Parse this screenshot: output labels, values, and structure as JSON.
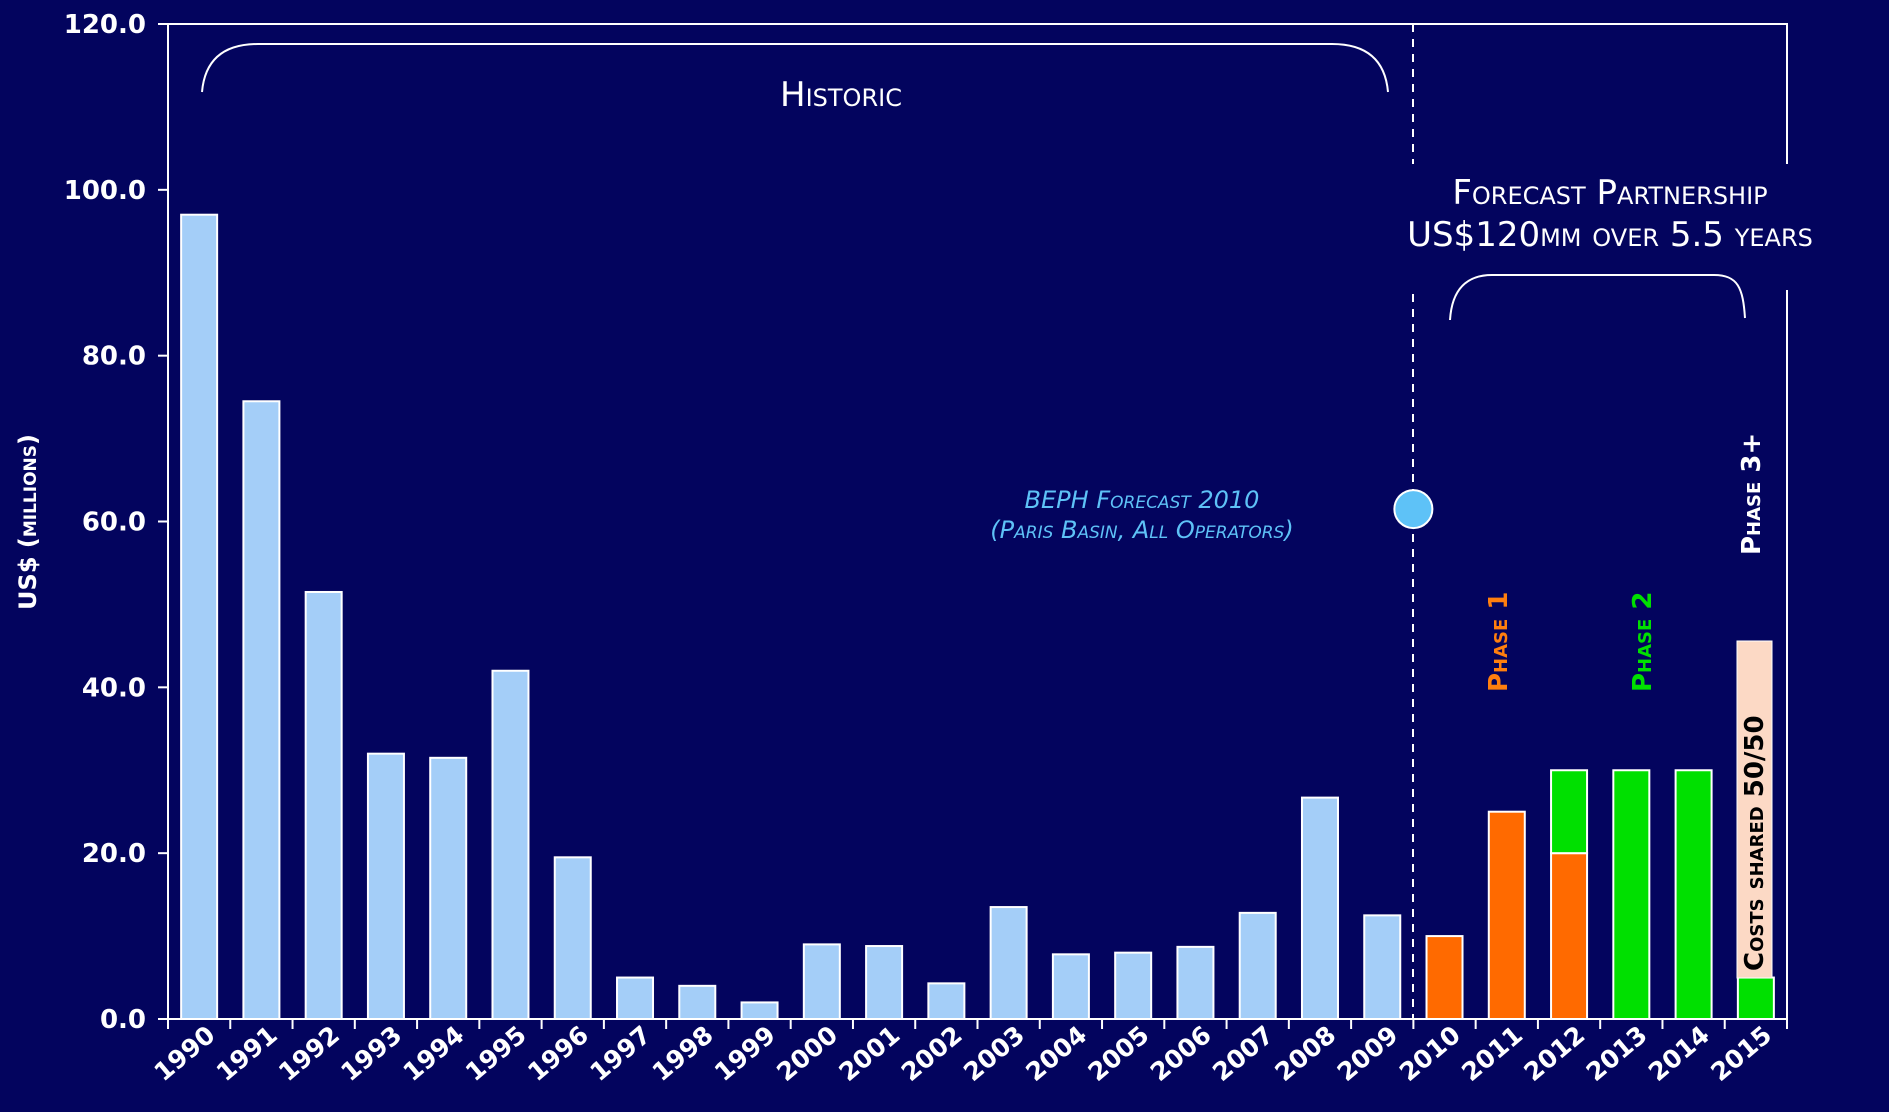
{
  "chart_data": {
    "type": "bar",
    "ylabel": "US$ (millions)",
    "ylim": [
      0,
      120
    ],
    "yticks": [
      "0.0",
      "20.0",
      "40.0",
      "60.0",
      "80.0",
      "100.0",
      "120.0"
    ],
    "categories": [
      "1990",
      "1991",
      "1992",
      "1993",
      "1994",
      "1995",
      "1996",
      "1997",
      "1998",
      "1999",
      "2000",
      "2001",
      "2002",
      "2003",
      "2004",
      "2005",
      "2006",
      "2007",
      "2008",
      "2009",
      "2010",
      "2011",
      "2012",
      "2013",
      "2014",
      "2015"
    ],
    "series": [
      {
        "values": [
          97,
          74.5,
          51.5,
          32,
          31.5,
          42,
          19.5,
          5,
          4,
          2,
          9,
          8.8,
          4.3,
          13.5,
          7.8,
          8,
          8.7,
          12.8,
          26.7,
          12.5,
          null,
          null,
          null,
          null,
          null,
          null
        ],
        "color": "#a4cef8"
      },
      {
        "values": [
          null,
          null,
          null,
          null,
          null,
          null,
          null,
          null,
          null,
          null,
          null,
          null,
          null,
          null,
          null,
          null,
          null,
          null,
          null,
          null,
          10,
          25,
          20,
          null,
          null,
          null
        ],
        "color": "#ff6a00"
      },
      {
        "values": [
          null,
          null,
          null,
          null,
          null,
          null,
          null,
          null,
          null,
          null,
          null,
          null,
          null,
          null,
          null,
          null,
          null,
          null,
          null,
          null,
          null,
          null,
          10,
          30,
          30,
          5
        ],
        "color": "#00e000"
      }
    ],
    "stacked": true,
    "marker": {
      "label_line1": "BEPH Forecast 2010",
      "label_line2": "(Paris Basin, All Operators)",
      "x": "2010",
      "y": 61.5,
      "color": "#5ec2f7"
    },
    "annotations": {
      "historic": "Historic",
      "forecast_line1": "Forecast Partnership",
      "forecast_line2": "US$120mm over 5.5 years",
      "phase1": "Phase 1",
      "phase2": "Phase 2",
      "phase3": "Phase 3+",
      "costs_shared": "Costs shared 50/50"
    },
    "annotation_colors": {
      "phase1": "#ff7f0e",
      "phase2": "#00e000",
      "phase3": "#ffffff",
      "costs_box": "#fcd9c5"
    },
    "grid": false
  }
}
